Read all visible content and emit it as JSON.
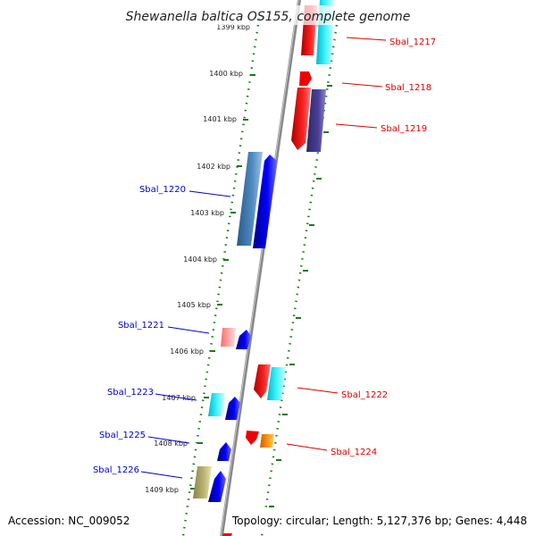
{
  "title": "Shewanella baltica OS155, complete genome",
  "accession": "Accession: NC_009052",
  "summary": "Topology: circular; Length: 5,127,376 bp; Genes: 4,448",
  "kbp_labels": [
    "1399 kbp",
    "1400 kbp",
    "1401 kbp",
    "1402 kbp",
    "1403 kbp",
    "1404 kbp",
    "1405 kbp",
    "1406 kbp",
    "1407 kbp",
    "1408 kbp",
    "1409 kbp"
  ],
  "genes_right": [
    "Sbal_1217",
    "Sbal_1218",
    "Sbal_1219",
    "Sbal_1222",
    "Sbal_1224"
  ],
  "genes_left": [
    "Sbal_1220",
    "Sbal_1221",
    "Sbal_1223",
    "Sbal_1225",
    "Sbal_1226"
  ],
  "colors": {
    "left_label": "#0000cc",
    "right_label": "#dd0000",
    "kbp_tick": "#1a7a1a",
    "axis": "#888888"
  }
}
